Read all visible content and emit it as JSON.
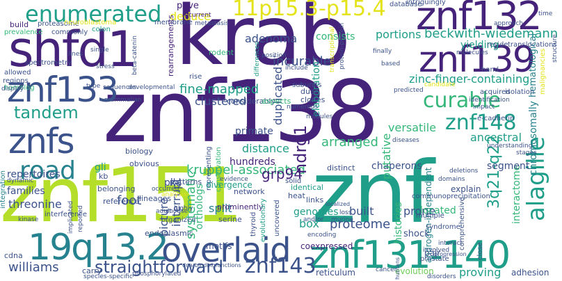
{
  "palette": {
    "dark_purple": "#46237a",
    "indigo": "#3b528b",
    "steel_blue": "#31688e",
    "teal": "#26828e",
    "sea_green": "#1f9e89",
    "green": "#35b779",
    "lime": "#6ece58",
    "yellow_green": "#b5de2b",
    "yellow": "#e4e319"
  },
  "words": {
    "znf138": "znf138",
    "znf": "znf",
    "krab": "krab",
    "znf151": "znf151",
    "shfd1": "shfd1",
    "znf132": "znf132",
    "znf139": "znf139",
    "znf133": "znf133",
    "znf131_140": "znf131-140",
    "19q13_2": "19q13.2",
    "overlaid": "overlaid",
    "znfs": "znfs",
    "enumerated": "enumerated",
    "band_11p15": "11p15.3-p15.4",
    "road": "road",
    "znf148": "znf148",
    "curable": "curable",
    "tandem": "tandem",
    "alagille": "alagille",
    "znf143": "znf143",
    "straightforward": "straightforward",
    "williams": "williams",
    "beckwith": "beckwith-wiedemann",
    "kruppel": "kruppel-associated",
    "band_3q21": "3q21-q22",
    "systematic": "systematic",
    "ndrg1": "ndrg1",
    "zinc_finger": "zinc-finger-containing",
    "incurable": "incurable",
    "fine_mapped": "fine-mapped",
    "adenoma": "adenoma",
    "portions": "portions",
    "consists": "consists",
    "deduce": "deduce",
    "pave": "pave",
    "yielding": "yielding",
    "grp94": "grp94",
    "arranged": "arranged",
    "chaperons": "chaperons",
    "interactome": "interactome",
    "proteome": "proteome",
    "genomes": "genomes",
    "box": "box",
    "split": "split",
    "foot": "foot",
    "picture": "picture",
    "interrupt": "interrupt",
    "hundreds": "hundreds",
    "distance": "distance",
    "clustered": "clustered",
    "duplicated": "duplicated",
    "elaboration": "elaboration",
    "putative": "putative",
    "versatile": "versatile",
    "ancestral": "ancestral",
    "histories": "histories",
    "prone": "prone",
    "built": "built",
    "proving": "proving",
    "threonine": "threonine",
    "families": "families",
    "repertoires": "repertoires",
    "orthologs": "orthologs",
    "primate": "primate",
    "pka": "pka",
    "gli": "gli",
    "chromosomally": "chromosomally",
    "hematological": "hematological",
    "androgen": "androgen-independent",
    "coexpressed": "coexpressed",
    "reticulum": "reticulum",
    "evolution": "evolution",
    "adhesion": "adhesion",
    "cdna": "cdna",
    "carry": "carry",
    "endoplasmic": "endoplasmic",
    "motifs": "motifs",
    "build": "build",
    "proteasome": "proteasome",
    "prevalence": "prevalence",
    "commonly": "commonly",
    "neuroblastoma": "neuroblastoma",
    "colon": "colon",
    "membrane": "membrane",
    "metastasis": "metastasis",
    "recurrent": "recurrent",
    "rearrangements": "rearrangements",
    "rodent": "rodent",
    "spectrometry": "spectrometry",
    "allowed": "allowed",
    "regions": "regions",
    "homolog": "homolog",
    "lines": "lines",
    "single": "single",
    "stress": "stress",
    "beta_catenin": "beta-catenin",
    "type": "type",
    "differences": "differences",
    "position": "position",
    "include": "include",
    "subunits": "subunits",
    "transcriptional": "transcriptional",
    "protein_protein": "protein-protein",
    "finally": "finally",
    "based": "based",
    "database": "database",
    "intriguingly": "intriguingly",
    "approach": "approach",
    "time": "time",
    "structure": "structure",
    "reside": "reside",
    "translocations": "translocations",
    "molecules": "molecules",
    "malignancies": "malignancies",
    "hand": "hand",
    "predicted": "predicted",
    "candidate": "candidate",
    "acquired": "acquired",
    "isolation": "isolation",
    "identification": "identification",
    "impact": "impact",
    "e_cadherin": "e-cadherin",
    "understanding": "understanding",
    "stages": "stages",
    "display": "display",
    "sequences": "sequences",
    "developmental": "developmental",
    "mammalian": "mammalian",
    "biology": "biology",
    "obvious": "obvious",
    "kb": "kb",
    "integration": "integration",
    "dynamic": "dynamic",
    "belonging": "belonging",
    "patterns": "patterns",
    "occurred": "occurred",
    "analysis": "analysis",
    "representing": "representing",
    "conservation": "conservation",
    "divergence": "divergence",
    "reference": "reference",
    "lineages": "lineages",
    "adult": "adult",
    "organized": "organized",
    "highly": "highly",
    "mouse": "mouse",
    "kinase": "kinase",
    "interference": "interference",
    "implicated": "implicated",
    "reported": "reported",
    "species_specific": "species-specific",
    "phosphorylated": "phosphorylated",
    "dna_binding": "dna-bindingfunctions",
    "prominently": "prominently",
    "serine": "serine",
    "network": "network",
    "evidence": "evidence",
    "thyroid": "thyroid",
    "evolutionary": "evolutionary",
    "uncovered": "uncovered",
    "considerably": "considerably",
    "dual": "dual",
    "clones": "clones",
    "numerous": "numerous",
    "modules": "modules",
    "aspects": "aspects",
    "solid": "solid",
    "distinct": "distinct",
    "identical": "identical",
    "heat": "heat",
    "links": "links",
    "localized": "localized",
    "communoprecipitation": "communoprecipitation",
    "loss": "loss",
    "murine": "murine",
    "and_or": "and/or",
    "encoding": "encoding",
    "diseases": "diseases",
    "deletions": "deletions",
    "domains": "domains",
    "located": "located",
    "segment": "segment",
    "explain": "explain",
    "shock": "shock",
    "syndrome": "syndrome",
    "multiple": "multiple",
    "comprehensive": "comprehensive",
    "interact": "interact",
    "pair": "pair",
    "prostate": "prostate",
    "involved": "involved",
    "progression": "progression",
    "close": "close",
    "cancer": "cancer",
    "disorders": "disorders",
    "humans": "humans",
    "rise": "rise"
  }
}
